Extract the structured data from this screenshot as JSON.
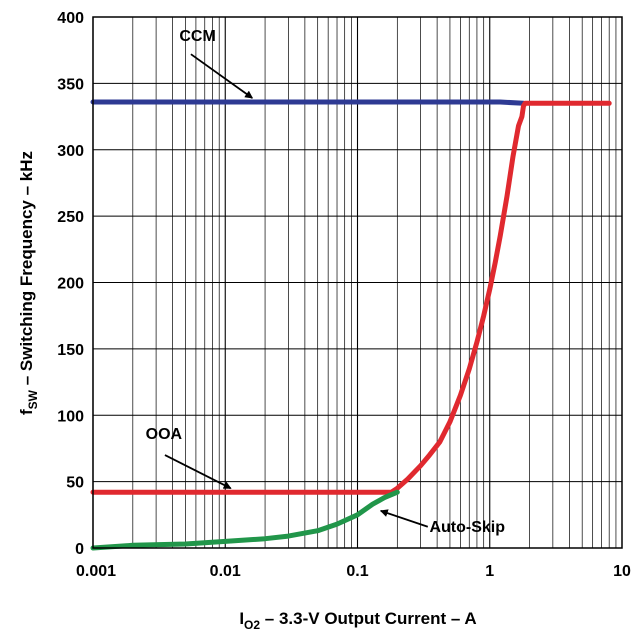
{
  "chart_data": {
    "type": "line",
    "title": "",
    "xlabel": {
      "main": "I",
      "sub": "O2",
      "rest": " – 3.3-V Output Current –  A"
    },
    "ylabel": {
      "main": "f",
      "sub": "SW",
      "rest": " – Switching Frequency – kHz"
    },
    "xscale": "log",
    "xlim": [
      0.001,
      10
    ],
    "ylim": [
      0,
      400
    ],
    "grid": true,
    "x_ticks": [
      {
        "value": 0.001,
        "label": "0.001"
      },
      {
        "value": 0.01,
        "label": "0.01"
      },
      {
        "value": 0.1,
        "label": "0.1"
      },
      {
        "value": 1,
        "label": "1"
      },
      {
        "value": 10,
        "label": "10"
      }
    ],
    "y_ticks": [
      {
        "value": 0,
        "label": "0"
      },
      {
        "value": 50,
        "label": "50"
      },
      {
        "value": 100,
        "label": "100"
      },
      {
        "value": 150,
        "label": "150"
      },
      {
        "value": 200,
        "label": "200"
      },
      {
        "value": 250,
        "label": "250"
      },
      {
        "value": 300,
        "label": "300"
      },
      {
        "value": 350,
        "label": "350"
      },
      {
        "value": 400,
        "label": "400"
      }
    ],
    "series": [
      {
        "name": "CCM",
        "color": "#2e3a93",
        "x": [
          0.001,
          1.2,
          1.8
        ],
        "y": [
          336,
          336,
          335
        ]
      },
      {
        "name": "OOA",
        "color": "#e0292f",
        "x": [
          0.001,
          0.18,
          0.2,
          0.24,
          0.3,
          0.35,
          0.42,
          0.5,
          0.6,
          0.7,
          0.8,
          0.9,
          1.0,
          1.1,
          1.2,
          1.35,
          1.5,
          1.65,
          1.75,
          1.8,
          1.85,
          1.9,
          2.5,
          8.0
        ],
        "y": [
          42,
          42,
          45,
          52,
          62,
          70,
          80,
          95,
          115,
          135,
          155,
          175,
          195,
          215,
          235,
          265,
          295,
          318,
          325,
          333,
          335,
          335,
          335,
          335
        ]
      },
      {
        "name": "Auto-Skip",
        "color": "#21964a",
        "x": [
          0.001,
          0.002,
          0.005,
          0.01,
          0.02,
          0.03,
          0.05,
          0.07,
          0.1,
          0.13,
          0.16,
          0.2
        ],
        "y": [
          0,
          2,
          3,
          5,
          7,
          9,
          13,
          18,
          25,
          33,
          38,
          42
        ]
      }
    ],
    "annotations": [
      {
        "text": "CCM",
        "target": "CCM"
      },
      {
        "text": "OOA",
        "target": "OOA"
      },
      {
        "text": "Auto-Skip",
        "target": "Auto-Skip"
      }
    ]
  }
}
